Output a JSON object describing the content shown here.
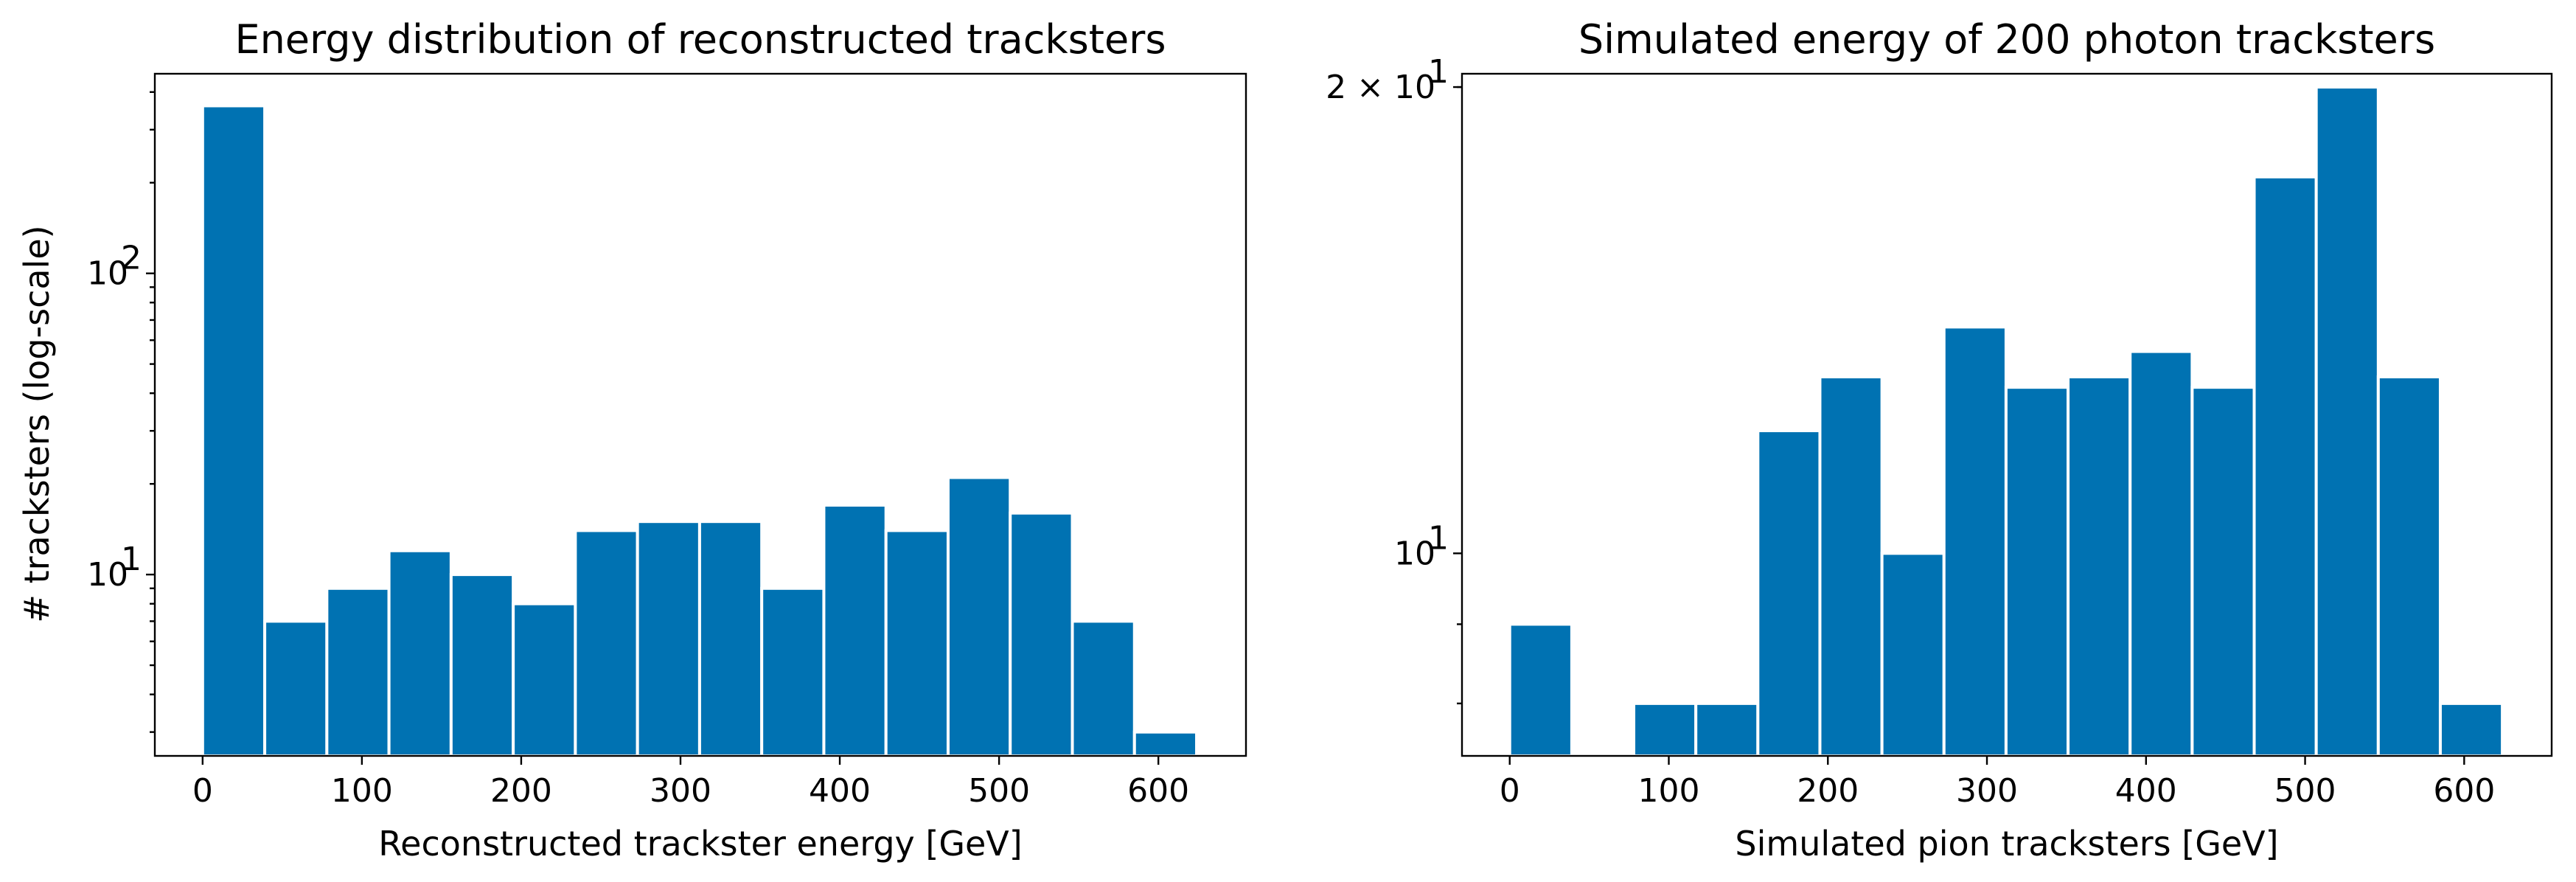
{
  "chart_data": [
    {
      "type": "bar",
      "title": "Energy distribution of reconstructed tracksters",
      "xlabel": "Reconstructed trackster energy [GeV]",
      "ylabel": "# tracksters (log-scale)",
      "yscale": "log",
      "xlim": [
        -30,
        655
      ],
      "ylim": [
        2.5,
        460
      ],
      "grid": false,
      "color": "#0072b2",
      "bin_edges": [
        0,
        39,
        78,
        117,
        156,
        195,
        234,
        273,
        312,
        351,
        390,
        429,
        468,
        507,
        546,
        585,
        624
      ],
      "values": [
        360,
        7,
        9,
        12,
        10,
        8,
        14,
        15,
        15,
        9,
        17,
        14,
        21,
        16,
        7,
        3
      ],
      "xticks": [
        0,
        100,
        200,
        300,
        400,
        500,
        600
      ],
      "xtick_labels": [
        "0",
        "100",
        "200",
        "300",
        "400",
        "500",
        "600"
      ],
      "yticks_major": [
        10,
        100
      ],
      "ytick_labels": [
        "10",
        "10"
      ],
      "ytick_exponents": [
        "1",
        "2"
      ]
    },
    {
      "type": "bar",
      "title": "Simulated energy of 200 photon tracksters",
      "xlabel": "Simulated pion tracksters [GeV]",
      "ylabel": "",
      "yscale": "log",
      "xlim": [
        -30,
        655
      ],
      "ylim": [
        7.4,
        20.4
      ],
      "grid": false,
      "color": "#0072b2",
      "bin_edges": [
        0,
        39,
        78,
        117,
        156,
        195,
        234,
        273,
        312,
        351,
        390,
        429,
        468,
        507,
        546,
        585,
        624
      ],
      "values": [
        9,
        7,
        8,
        8,
        12,
        13,
        10,
        14,
        12.8,
        13,
        13.5,
        12.8,
        17.5,
        20,
        13,
        8
      ],
      "xticks": [
        0,
        100,
        200,
        300,
        400,
        500,
        600
      ],
      "xtick_labels": [
        "0",
        "100",
        "200",
        "300",
        "400",
        "500",
        "600"
      ],
      "yticks_major": [
        10,
        20
      ],
      "ytick_labels": [
        "10",
        "2 × 10"
      ],
      "ytick_exponents": [
        "1",
        "1"
      ]
    }
  ]
}
